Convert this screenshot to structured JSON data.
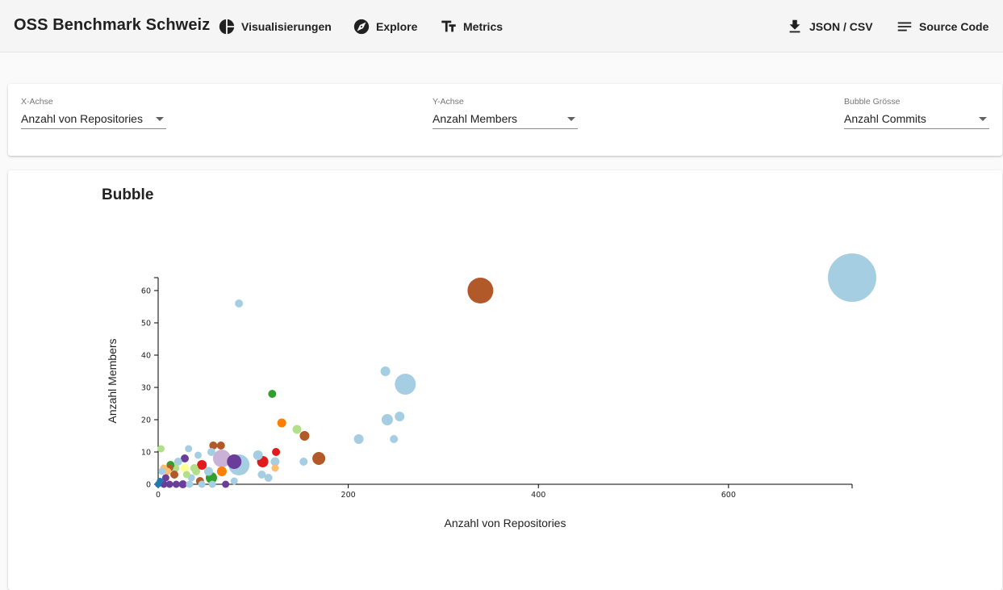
{
  "app": {
    "title": "OSS Benchmark Schweiz",
    "nav": [
      {
        "label": "Visualisierungen",
        "icon": "pie-chart-icon"
      },
      {
        "label": "Explore",
        "icon": "compass-icon"
      },
      {
        "label": "Metrics",
        "icon": "text-fields-icon"
      }
    ],
    "actions": [
      {
        "label": "JSON / CSV",
        "icon": "download-icon"
      },
      {
        "label": "Source Code",
        "icon": "notes-icon"
      }
    ]
  },
  "controls": {
    "x_axis": {
      "label": "X-Achse",
      "value": "Anzahl von Repositories"
    },
    "y_axis": {
      "label": "Y-Achse",
      "value": "Anzahl Members"
    },
    "bubble_size": {
      "label": "Bubble Grösse",
      "value": "Anzahl Commits"
    }
  },
  "chart_title": "Bubble",
  "chart_data": {
    "type": "scatter",
    "title": "Bubble",
    "xlabel": "Anzahl von Repositories",
    "ylabel": "Anzahl Members",
    "xlim": [
      0,
      730
    ],
    "ylim": [
      0,
      64
    ],
    "xticks": [
      0,
      200,
      400,
      600
    ],
    "yticks": [
      0,
      10,
      20,
      30,
      40,
      50,
      60
    ],
    "grid": false,
    "points": [
      {
        "x": 730,
        "y": 64,
        "r": 30,
        "color": "#a6cee3"
      },
      {
        "x": 339,
        "y": 60,
        "r": 16,
        "color": "#b15928"
      },
      {
        "x": 260,
        "y": 31,
        "r": 13,
        "color": "#a6cee3"
      },
      {
        "x": 85,
        "y": 56,
        "r": 5,
        "color": "#a6cee3"
      },
      {
        "x": 239,
        "y": 35,
        "r": 6,
        "color": "#a6cee3"
      },
      {
        "x": 241,
        "y": 20,
        "r": 7,
        "color": "#a6cee3"
      },
      {
        "x": 254,
        "y": 21,
        "r": 6,
        "color": "#a6cee3"
      },
      {
        "x": 248,
        "y": 14,
        "r": 5,
        "color": "#a6cee3"
      },
      {
        "x": 211,
        "y": 14,
        "r": 6,
        "color": "#a6cee3"
      },
      {
        "x": 120,
        "y": 28,
        "r": 5,
        "color": "#33a02c"
      },
      {
        "x": 130,
        "y": 19,
        "r": 5.5,
        "color": "#ff7f00"
      },
      {
        "x": 146,
        "y": 17,
        "r": 5.5,
        "color": "#b2df8a"
      },
      {
        "x": 154,
        "y": 15,
        "r": 6,
        "color": "#b15928"
      },
      {
        "x": 169,
        "y": 8,
        "r": 8,
        "color": "#b15928"
      },
      {
        "x": 153,
        "y": 7,
        "r": 5,
        "color": "#a6cee3"
      },
      {
        "x": 124,
        "y": 10,
        "r": 5,
        "color": "#e31a1c"
      },
      {
        "x": 123,
        "y": 7,
        "r": 5.5,
        "color": "#a6cee3"
      },
      {
        "x": 123,
        "y": 5,
        "r": 4.5,
        "color": "#fdbf6f"
      },
      {
        "x": 105,
        "y": 9,
        "r": 6,
        "color": "#a6cee3"
      },
      {
        "x": 110,
        "y": 7,
        "r": 7,
        "color": "#e31a1c"
      },
      {
        "x": 109,
        "y": 3,
        "r": 5,
        "color": "#a6cee3"
      },
      {
        "x": 116,
        "y": 2,
        "r": 5,
        "color": "#a6cee3"
      },
      {
        "x": 85,
        "y": 6,
        "r": 13,
        "color": "#a6cee3"
      },
      {
        "x": 80,
        "y": 7,
        "r": 9,
        "color": "#6a3d9a"
      },
      {
        "x": 67,
        "y": 8,
        "r": 11,
        "color": "#cab2d6"
      },
      {
        "x": 66,
        "y": 12,
        "r": 5,
        "color": "#b15928"
      },
      {
        "x": 58,
        "y": 12,
        "r": 5,
        "color": "#b15928"
      },
      {
        "x": 56,
        "y": 10,
        "r": 5,
        "color": "#a6cee3"
      },
      {
        "x": 67,
        "y": 4,
        "r": 6,
        "color": "#ff7f00"
      },
      {
        "x": 56,
        "y": 2,
        "r": 7,
        "color": "#33a02c"
      },
      {
        "x": 53,
        "y": 4,
        "r": 5.5,
        "color": "#a6cee3"
      },
      {
        "x": 46,
        "y": 6,
        "r": 6,
        "color": "#e31a1c"
      },
      {
        "x": 42,
        "y": 9,
        "r": 4.5,
        "color": "#a6cee3"
      },
      {
        "x": 38,
        "y": 5,
        "r": 5,
        "color": "#b2df8a"
      },
      {
        "x": 40,
        "y": 4,
        "r": 5,
        "color": "#b2df8a"
      },
      {
        "x": 35,
        "y": 2,
        "r": 4.5,
        "color": "#a6cee3"
      },
      {
        "x": 44,
        "y": 1,
        "r": 5,
        "color": "#b15928"
      },
      {
        "x": 32,
        "y": 11,
        "r": 4.5,
        "color": "#a6cee3"
      },
      {
        "x": 28,
        "y": 8,
        "r": 5,
        "color": "#6a3d9a"
      },
      {
        "x": 28,
        "y": 5,
        "r": 5.5,
        "color": "#ffff99"
      },
      {
        "x": 30,
        "y": 3,
        "r": 4.5,
        "color": "#b2df8a"
      },
      {
        "x": 21,
        "y": 7,
        "r": 5,
        "color": "#a6cee3"
      },
      {
        "x": 18,
        "y": 5,
        "r": 5,
        "color": "#b2df8a"
      },
      {
        "x": 17,
        "y": 3,
        "r": 5,
        "color": "#b15928"
      },
      {
        "x": 13,
        "y": 6,
        "r": 5,
        "color": "#33a02c"
      },
      {
        "x": 12,
        "y": 5,
        "r": 4.5,
        "color": "#b15928"
      },
      {
        "x": 10,
        "y": 4,
        "r": 4.5,
        "color": "#fdbf6f"
      },
      {
        "x": 6,
        "y": 5,
        "r": 4.5,
        "color": "#fdbf6f"
      },
      {
        "x": 3,
        "y": 11,
        "r": 4.5,
        "color": "#b2df8a"
      },
      {
        "x": 4,
        "y": 4,
        "r": 4.5,
        "color": "#a6cee3"
      },
      {
        "x": 8,
        "y": 2,
        "r": 4.5,
        "color": "#6a3d9a"
      },
      {
        "x": 2,
        "y": 1,
        "r": 4,
        "color": "#1f78b4"
      },
      {
        "x": 0,
        "y": 0,
        "r": 4,
        "color": "#1f78b4"
      },
      {
        "x": 6,
        "y": 0,
        "r": 4.5,
        "color": "#6a3d9a"
      },
      {
        "x": 12,
        "y": 0,
        "r": 4.5,
        "color": "#6a3d9a"
      },
      {
        "x": 19,
        "y": 0,
        "r": 4.5,
        "color": "#6a3d9a"
      },
      {
        "x": 26,
        "y": 0,
        "r": 5,
        "color": "#6a3d9a"
      },
      {
        "x": 33,
        "y": 0,
        "r": 4.5,
        "color": "#a6cee3"
      },
      {
        "x": 57,
        "y": 0,
        "r": 4.5,
        "color": "#a6cee3"
      },
      {
        "x": 71,
        "y": 0,
        "r": 4.5,
        "color": "#6a3d9a"
      },
      {
        "x": 80,
        "y": 1,
        "r": 4.5,
        "color": "#a6cee3"
      },
      {
        "x": 46,
        "y": 0,
        "r": 4.5,
        "color": "#a6cee3"
      }
    ]
  }
}
